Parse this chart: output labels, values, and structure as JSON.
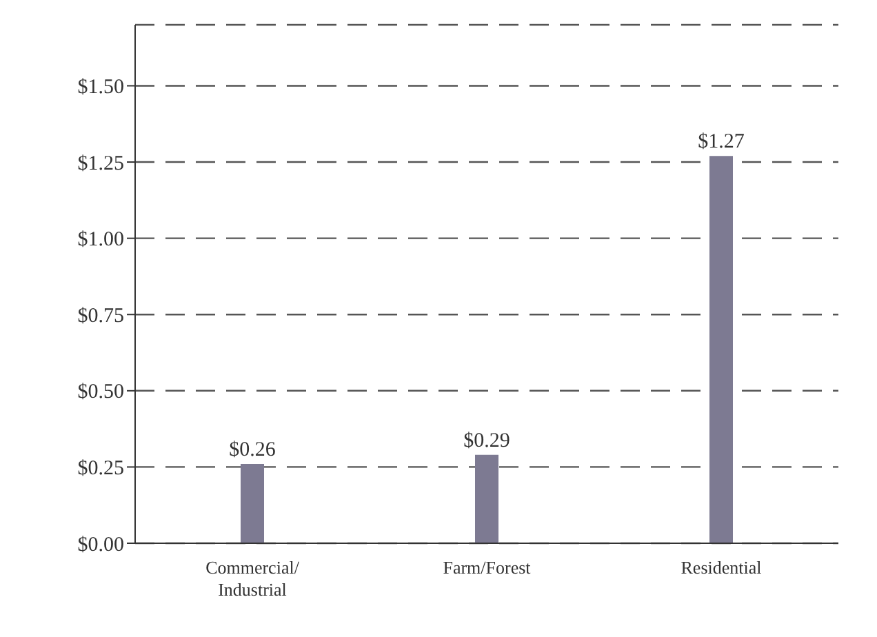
{
  "chart_data": {
    "type": "bar",
    "categories": [
      "Commercial/Industrial",
      "Farm/Forest",
      "Residential"
    ],
    "values": [
      0.26,
      0.29,
      1.27
    ],
    "value_labels": [
      "$0.26",
      "$0.29",
      "$1.27"
    ],
    "color": "#7d7a92",
    "ylim": [
      0,
      1.7
    ],
    "yticks": [
      {
        "value": 0,
        "label": "$0.00"
      },
      {
        "value": 0.25,
        "label": "$0.25"
      },
      {
        "value": 0.5,
        "label": "$0.50"
      },
      {
        "value": 0.75,
        "label": "$0.75"
      },
      {
        "value": 1,
        "label": "$1.00"
      },
      {
        "value": 1.25,
        "label": "$1.25"
      },
      {
        "value": 1.5,
        "label": "$1.50"
      }
    ],
    "grid": "y"
  }
}
